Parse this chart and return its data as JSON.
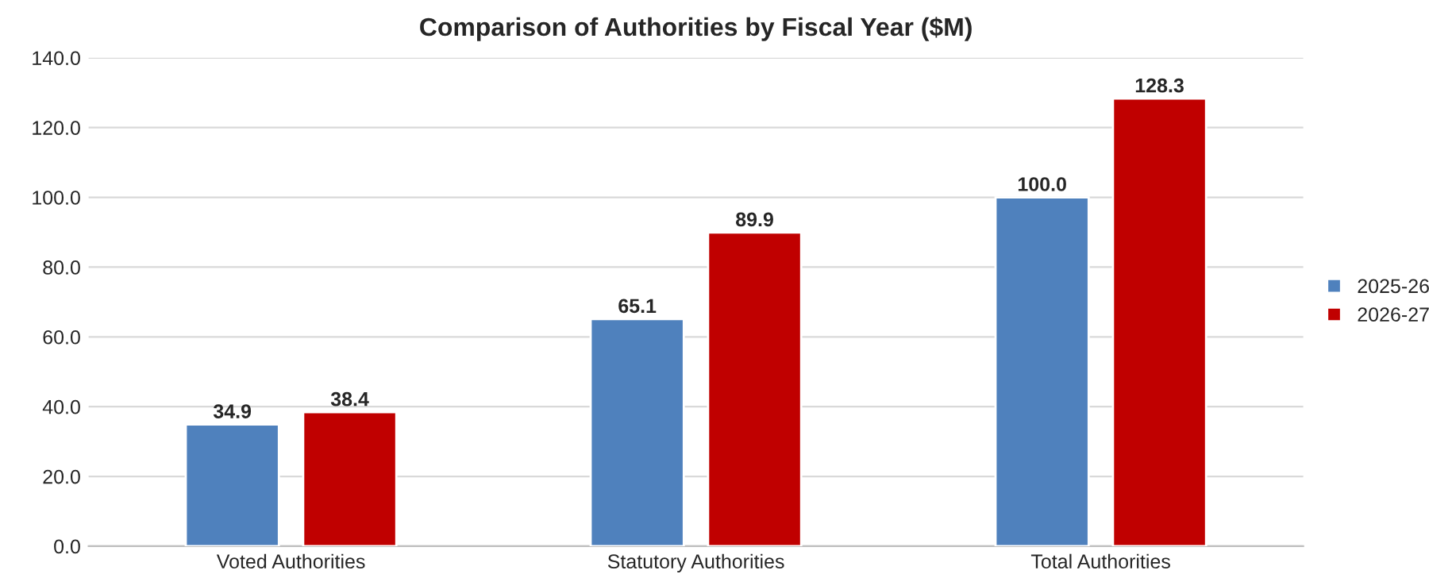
{
  "chart_data": {
    "type": "bar",
    "title": "Comparison of Authorities by Fiscal Year ($M)",
    "categories": [
      "Voted Authorities",
      "Statutory Authorities",
      "Total Authorities"
    ],
    "series": [
      {
        "name": "2025-26",
        "color": "#4f81bd",
        "values": [
          34.9,
          65.1,
          100.0
        ],
        "value_labels": [
          "34.9",
          "65.1",
          "100.0"
        ]
      },
      {
        "name": "2026-27",
        "color": "#c00000",
        "values": [
          38.4,
          89.9,
          128.3
        ],
        "value_labels": [
          "38.4",
          "89.9",
          "128.3"
        ]
      }
    ],
    "ylim": [
      0,
      140
    ],
    "yticks": [
      {
        "value": 0,
        "label": "0.0"
      },
      {
        "value": 20,
        "label": "20.0"
      },
      {
        "value": 40,
        "label": "40.0"
      },
      {
        "value": 60,
        "label": "60.0"
      },
      {
        "value": 80,
        "label": "80.0"
      },
      {
        "value": 100,
        "label": "100.0"
      },
      {
        "value": 120,
        "label": "120.0"
      },
      {
        "value": 140,
        "label": "140.0"
      }
    ],
    "grid": "y",
    "legend": "right"
  }
}
